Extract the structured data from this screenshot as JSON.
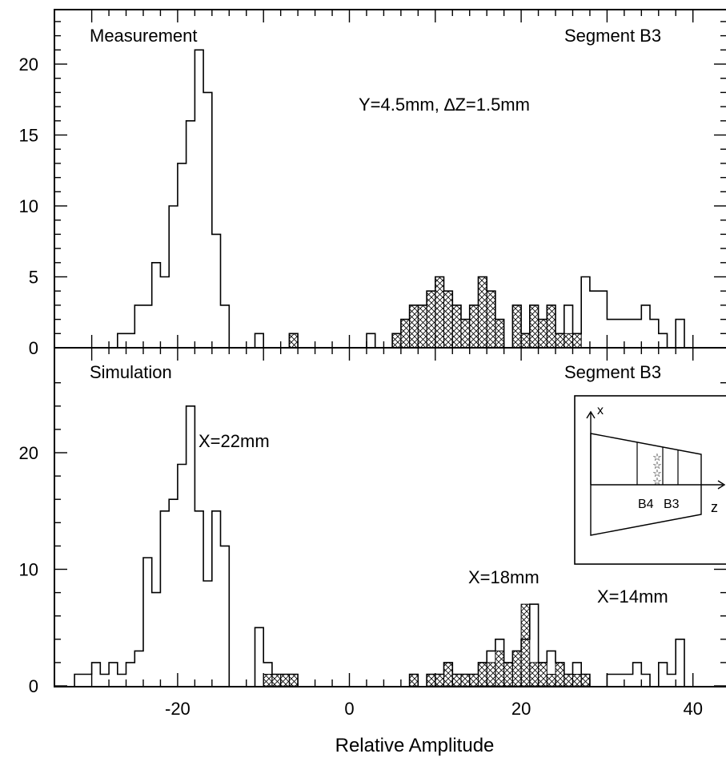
{
  "chart_data": [
    {
      "type": "bar",
      "panel": "top",
      "histogram": true,
      "title_left": "Measurement",
      "title_right": "Segment B3",
      "annotations": [
        "Y=4.5mm, ∆Z=1.5mm"
      ],
      "xlabel": "Relative Amplitude",
      "ylabel": "",
      "xlim": [
        -34,
        43
      ],
      "ylim": [
        0,
        24
      ],
      "yticks": [
        0,
        5,
        10,
        15,
        20
      ],
      "bin_width": 1,
      "series": [
        {
          "name": "",
          "fill": "none",
          "x": [
            -27,
            -26,
            -25,
            -24,
            -23,
            -22,
            -21,
            -20,
            -19,
            -18,
            -17,
            -16,
            -15,
            -14,
            -13,
            -11,
            -7,
            2,
            5,
            6,
            7,
            8,
            9,
            10,
            11,
            12,
            13,
            14,
            15,
            16,
            17,
            19,
            20,
            21,
            22,
            23,
            24,
            25,
            26,
            27,
            28,
            29,
            30,
            31,
            32,
            33,
            34,
            35,
            36,
            38
          ],
          "values": [
            1,
            1,
            3,
            3,
            6,
            5,
            10,
            13,
            16,
            21,
            18,
            8,
            3,
            0,
            0,
            1,
            1,
            1,
            1,
            2,
            3,
            3,
            4,
            5,
            4,
            3,
            2,
            3,
            5,
            4,
            2,
            3,
            1,
            3,
            2,
            3,
            1,
            3,
            1,
            5,
            4,
            4,
            2,
            2,
            2,
            2,
            3,
            2,
            1,
            2
          ]
        },
        {
          "name": "",
          "fill": "hatched",
          "x": [
            -7,
            5,
            6,
            7,
            8,
            9,
            10,
            11,
            12,
            13,
            14,
            15,
            16,
            17,
            19,
            20,
            21,
            22,
            23,
            24,
            25,
            26
          ],
          "values": [
            1,
            1,
            2,
            3,
            3,
            4,
            5,
            4,
            3,
            2,
            3,
            5,
            4,
            2,
            3,
            1,
            3,
            2,
            3,
            1,
            1,
            1
          ]
        }
      ]
    },
    {
      "type": "bar",
      "panel": "bottom",
      "histogram": true,
      "title_left": "Simulation",
      "title_right": "Segment B3",
      "annotations": [
        "X=22mm",
        "X=18mm",
        "X=14mm"
      ],
      "xlabel": "Relative Amplitude",
      "ylabel": "",
      "xlim": [
        -34,
        43
      ],
      "xticks": [
        -20,
        0,
        20,
        40
      ],
      "ylim": [
        0,
        27
      ],
      "yticks": [
        0,
        10,
        20
      ],
      "bin_width": 1,
      "series": [
        {
          "name": "",
          "fill": "none",
          "x": [
            -32,
            -31,
            -30,
            -29,
            -28,
            -27,
            -26,
            -25,
            -24,
            -23,
            -22,
            -21,
            -20,
            -19,
            -18,
            -17,
            -16,
            -15,
            -11,
            -10,
            -9,
            -8,
            -7,
            7,
            9,
            10,
            11,
            12,
            13,
            14,
            15,
            16,
            17,
            18,
            19,
            20,
            21,
            22,
            23,
            24,
            25,
            26,
            27,
            30,
            31,
            32,
            33,
            34,
            36,
            37,
            38
          ],
          "values": [
            1,
            1,
            2,
            1,
            2,
            1,
            2,
            3,
            11,
            8,
            15,
            16,
            19,
            24,
            15,
            9,
            15,
            12,
            5,
            2,
            1,
            1,
            1,
            1,
            1,
            1,
            2,
            1,
            1,
            1,
            2,
            3,
            4,
            2,
            3,
            4,
            7,
            2,
            3,
            2,
            1,
            2,
            1,
            1,
            1,
            1,
            2,
            1,
            2,
            1,
            4
          ]
        },
        {
          "name": "",
          "fill": "hatched",
          "x": [
            -10,
            -9,
            -8,
            -7,
            7,
            9,
            10,
            11,
            12,
            13,
            14,
            15,
            16,
            17,
            18,
            19,
            20,
            21,
            22,
            23,
            24,
            25,
            26,
            27
          ],
          "values": [
            1,
            1,
            1,
            1,
            1,
            1,
            1,
            2,
            1,
            1,
            1,
            2,
            2,
            3,
            2,
            3,
            7,
            2,
            2,
            1,
            2,
            1,
            1,
            1
          ]
        }
      ]
    }
  ],
  "inset": {
    "axis_x_label": "x",
    "axis_z_label": "z",
    "segment_labels": [
      "B4",
      "B3"
    ],
    "marker_symbol": "☆",
    "marker_count": 4
  }
}
